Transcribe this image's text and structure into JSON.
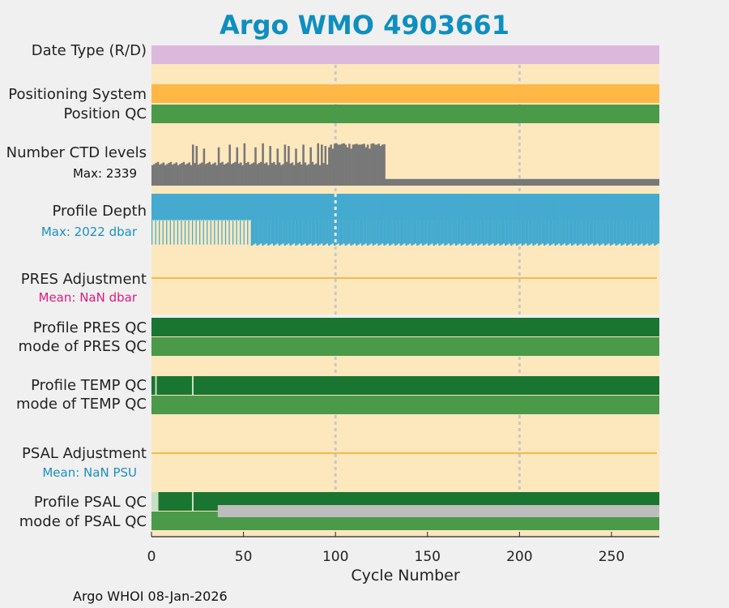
{
  "title": "Argo WMO 4903661",
  "footer": "Argo WHOI 08-Jan-2026",
  "colors": {
    "background": "#fde8be",
    "date_type": "#dcb8dc",
    "positioning": "#ffb845",
    "qc_good": "#4a9a4a",
    "qc_dark": "#1a7530",
    "ctd": "#787878",
    "depth": "#44aacf",
    "adjustment_line": "#f5b94a",
    "grid": "#c8c8c8",
    "pres_mean": "#e0197d",
    "psal_mean": "#1a8fc4",
    "light_qc": "#c6dfc6",
    "gray_mode": "#bdbdbd"
  },
  "rows": {
    "date_type": {
      "label": "Date Type (R/D)"
    },
    "positioning": {
      "label": "Positioning System"
    },
    "position_qc": {
      "label": "Position QC"
    },
    "ctd": {
      "label": "Number CTD levels",
      "max_text": "Max: 2339"
    },
    "depth": {
      "label": "Profile Depth",
      "max_text": "Max: 2022 dbar"
    },
    "pres_adj": {
      "label": "PRES Adjustment",
      "mean_text": "Mean:  NaN dbar"
    },
    "pres_qc": {
      "label": "Profile PRES QC"
    },
    "pres_mode": {
      "label": "mode of PRES QC"
    },
    "temp_qc": {
      "label": "Profile TEMP QC"
    },
    "temp_mode": {
      "label": "mode of TEMP QC"
    },
    "psal_adj": {
      "label": "PSAL Adjustment",
      "mean_text": "Mean:  NaN PSU"
    },
    "psal_qc": {
      "label": "Profile PSAL QC"
    },
    "psal_mode": {
      "label": "mode of PSAL QC"
    }
  },
  "chart_data": {
    "type": "bar",
    "title": "Argo WMO 4903661",
    "xlabel": "Cycle Number",
    "xlim": [
      0,
      276
    ],
    "xticks": [
      0,
      50,
      100,
      150,
      200,
      250
    ],
    "vertical_grid": [
      100,
      200
    ],
    "ctd_max": 2339,
    "depth_max_dbar": 2022,
    "series": [
      {
        "name": "Number CTD levels",
        "cycles_to": 126,
        "typical_fraction": 0.46,
        "high_fraction": 0.95,
        "later_fraction": 0.15
      },
      {
        "name": "Profile Depth",
        "short_profiles_to": 53,
        "short_fraction": 0.52,
        "full_fraction": 1.0
      },
      {
        "name": "Profile TEMP QC",
        "marks": [
          2,
          22
        ]
      },
      {
        "name": "Profile PSAL QC",
        "marks": [
          2,
          22
        ]
      },
      {
        "name": "mode of PSAL QC",
        "gray_from": 36
      }
    ]
  }
}
